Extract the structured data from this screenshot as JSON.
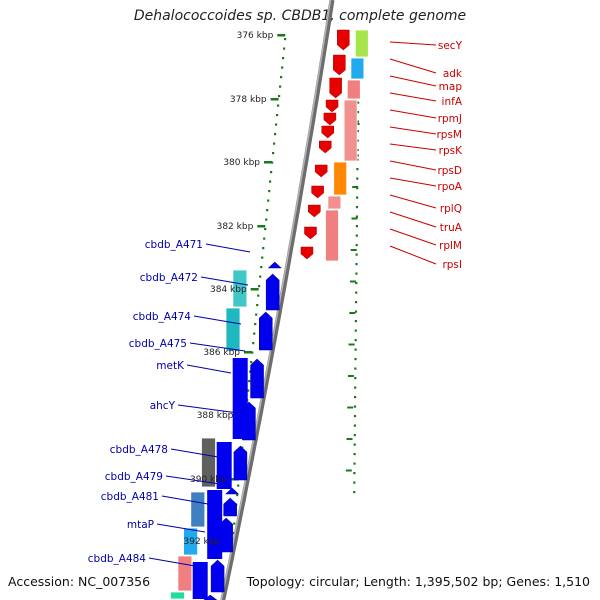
{
  "title": "Dehalococcoides sp. CBDB1, complete genome",
  "accession": "Accession: NC_007356",
  "topology": "Topology: circular; Length: 1,395,502 bp; Genes: 1,510",
  "colors": {
    "backbone": "#808080",
    "tick": "#1a7a1a",
    "forward_gene": "#e60000",
    "reverse_gene": "#0000ee",
    "forward_label": "#cc0000",
    "reverse_label": "#0000aa"
  },
  "ruler": {
    "ticks": [
      "376 kbp",
      "378 kbp",
      "380 kbp",
      "382 kbp",
      "384 kbp",
      "386 kbp",
      "388 kbp",
      "390 kbp",
      "392 kbp"
    ]
  },
  "forward_genes": [
    "secY",
    "adk",
    "map",
    "infA",
    "rpmJ",
    "rpsM",
    "rpsK",
    "rpsD",
    "rpoA",
    "rplQ",
    "truA",
    "rplM",
    "rpsI"
  ],
  "reverse_genes": [
    "cbdb_A471",
    "cbdb_A472",
    "cbdb_A474",
    "cbdb_A475",
    "metK",
    "ahcY",
    "cbdb_A478",
    "cbdb_A479",
    "cbdb_A481",
    "mtaP",
    "cbdb_A484"
  ]
}
